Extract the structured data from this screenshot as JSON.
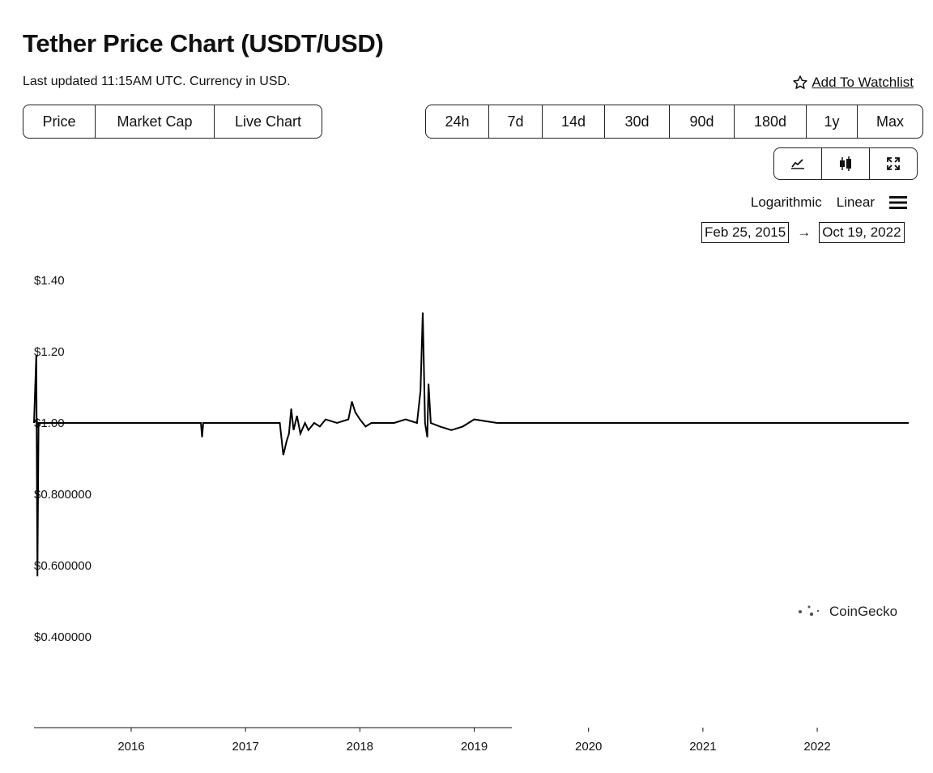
{
  "page": {
    "title": "Tether Price Chart (USDT/USD)",
    "subtitle": "Last updated 11:15AM UTC. Currency in USD.",
    "watchlist_label": "Add To Watchlist"
  },
  "chart_type_tabs": [
    "Price",
    "Market Cap",
    "Live Chart"
  ],
  "range_tabs": [
    "24h",
    "7d",
    "14d",
    "30d",
    "90d",
    "180d",
    "1y",
    "Max"
  ],
  "view_icons": [
    "line-chart-icon",
    "candlestick-icon",
    "fullscreen-icon"
  ],
  "scale": {
    "log_label": "Logarithmic",
    "linear_label": "Linear",
    "menu_icon": "hamburger-menu-icon"
  },
  "date_range": {
    "from": "Feb 25, 2015",
    "arrow": "→",
    "to": "Oct 19, 2022"
  },
  "watermark": "CoinGecko",
  "chart_data": {
    "type": "line",
    "series": [
      {
        "values": [
          [
            2015.15,
            1.0
          ],
          [
            2015.17,
            1.19
          ],
          [
            2015.18,
            0.57
          ],
          [
            2015.19,
            1.0
          ],
          [
            2015.5,
            1.0
          ],
          [
            2016.0,
            1.0
          ],
          [
            2016.61,
            1.0
          ],
          [
            2016.62,
            0.96
          ],
          [
            2016.63,
            1.0
          ],
          [
            2017.0,
            1.0
          ],
          [
            2017.3,
            1.0
          ],
          [
            2017.33,
            0.91
          ],
          [
            2017.36,
            0.95
          ],
          [
            2017.38,
            0.97
          ],
          [
            2017.4,
            1.04
          ],
          [
            2017.42,
            0.98
          ],
          [
            2017.45,
            1.02
          ],
          [
            2017.48,
            0.97
          ],
          [
            2017.52,
            1.0
          ],
          [
            2017.55,
            0.98
          ],
          [
            2017.6,
            1.0
          ],
          [
            2017.65,
            0.99
          ],
          [
            2017.7,
            1.01
          ],
          [
            2017.8,
            1.0
          ],
          [
            2017.9,
            1.01
          ],
          [
            2017.93,
            1.06
          ],
          [
            2017.96,
            1.03
          ],
          [
            2018.0,
            1.01
          ],
          [
            2018.05,
            0.99
          ],
          [
            2018.1,
            1.0
          ],
          [
            2018.2,
            1.0
          ],
          [
            2018.3,
            1.0
          ],
          [
            2018.4,
            1.01
          ],
          [
            2018.5,
            1.0
          ],
          [
            2018.53,
            1.09
          ],
          [
            2018.55,
            1.31
          ],
          [
            2018.57,
            1.0
          ],
          [
            2018.59,
            0.96
          ],
          [
            2018.6,
            1.11
          ],
          [
            2018.62,
            1.0
          ],
          [
            2018.7,
            0.99
          ],
          [
            2018.8,
            0.98
          ],
          [
            2018.9,
            0.99
          ],
          [
            2019.0,
            1.01
          ],
          [
            2019.2,
            1.0
          ],
          [
            2019.5,
            1.0
          ],
          [
            2019.8,
            1.0
          ],
          [
            2020.0,
            1.0
          ],
          [
            2020.2,
            1.0
          ],
          [
            2020.5,
            1.0
          ],
          [
            2020.8,
            1.0
          ],
          [
            2021.0,
            1.0
          ],
          [
            2021.3,
            1.0
          ],
          [
            2021.6,
            1.0
          ],
          [
            2021.9,
            1.0
          ],
          [
            2022.2,
            1.0
          ],
          [
            2022.5,
            1.0
          ],
          [
            2022.8,
            1.0
          ]
        ]
      }
    ],
    "y_ticks": [
      "$1.40",
      "$1.20",
      "$1.00",
      "$0.800000",
      "$0.600000",
      "$0.400000"
    ],
    "y_tick_values": [
      1.4,
      1.2,
      1.0,
      0.8,
      0.6,
      0.4
    ],
    "x_ticks": [
      "2016",
      "2017",
      "2018",
      "2019",
      "2020",
      "2021",
      "2022"
    ],
    "x_tick_values": [
      2016,
      2017,
      2018,
      2019,
      2020,
      2021,
      2022
    ],
    "xlim": [
      2015.15,
      2022.8
    ],
    "ylim": [
      0.2,
      1.45
    ],
    "grid": false,
    "line_color": "#000000"
  }
}
